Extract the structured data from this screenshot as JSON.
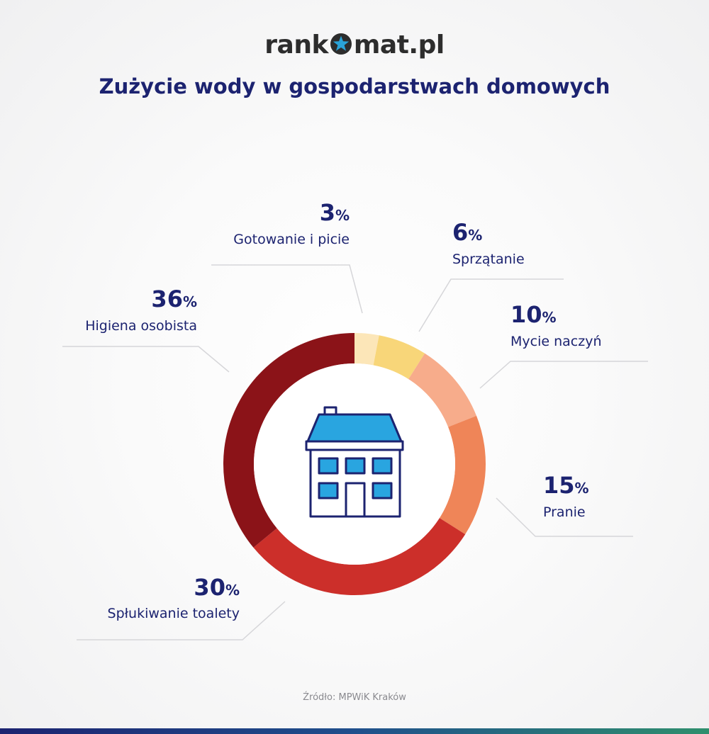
{
  "logo": {
    "before": "rank",
    "after": "mat.pl"
  },
  "title": "Zużycie wody w gospodarstwach domowych",
  "source": "Źródło: MPWiK Kraków",
  "percent_symbol": "%",
  "chart_data": {
    "type": "pie",
    "title": "Zużycie wody w gospodarstwach domowych",
    "categories": [
      "Gotowanie i picie",
      "Sprzątanie",
      "Mycie naczyń",
      "Pranie",
      "Spłukiwanie toalety",
      "Higiena osobista"
    ],
    "values": [
      3,
      6,
      10,
      15,
      30,
      36
    ],
    "labels": [
      "3",
      "6",
      "10",
      "15",
      "30",
      "36"
    ],
    "colors": [
      "#fce6b8",
      "#f8d679",
      "#f7ac8b",
      "#ef8558",
      "#cc2f2a",
      "#8b1318"
    ],
    "unit": "%",
    "donut": true,
    "center_icon": "house-icon"
  }
}
